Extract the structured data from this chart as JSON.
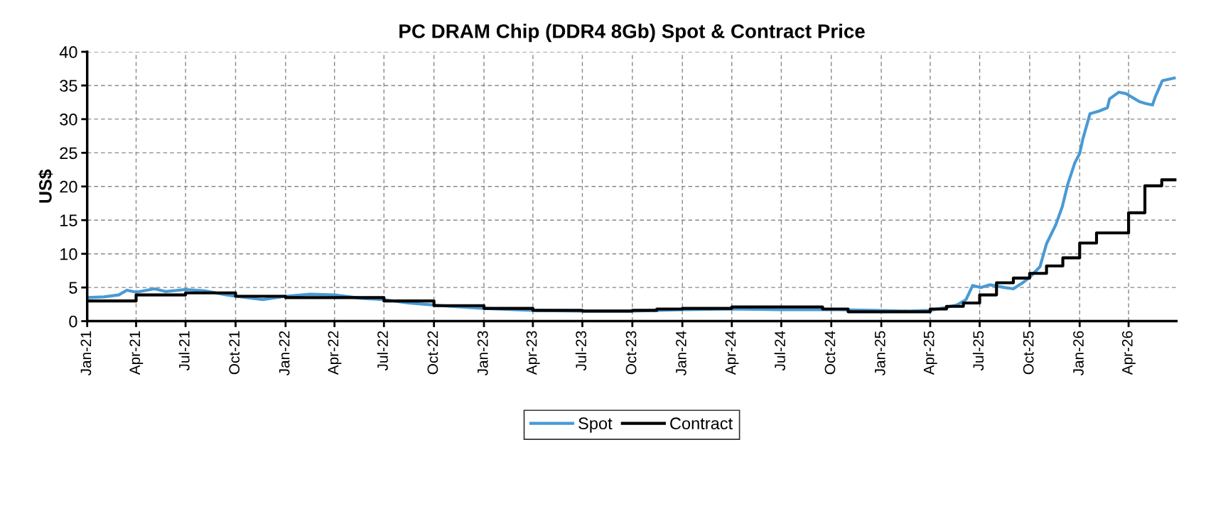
{
  "chart_data": {
    "type": "line",
    "title": "PC DRAM Chip (DDR4 8Gb) Spot & Contract Price",
    "ylabel": "US$",
    "xlim": [
      "2021-01-01",
      "2026-06-28"
    ],
    "xticks": [
      {
        "value": "2021-01-01",
        "label": "Jan-21"
      },
      {
        "value": "2021-04-01",
        "label": "Apr-21"
      },
      {
        "value": "2021-07-01",
        "label": "Jul-21"
      },
      {
        "value": "2021-10-01",
        "label": "Oct-21"
      },
      {
        "value": "2022-01-01",
        "label": "Jan-22"
      },
      {
        "value": "2022-04-01",
        "label": "Apr-22"
      },
      {
        "value": "2022-07-01",
        "label": "Jul-22"
      },
      {
        "value": "2022-10-01",
        "label": "Oct-22"
      },
      {
        "value": "2023-01-01",
        "label": "Jan-23"
      },
      {
        "value": "2023-04-01",
        "label": "Apr-23"
      },
      {
        "value": "2023-07-01",
        "label": "Jul-23"
      },
      {
        "value": "2023-10-01",
        "label": "Oct-23"
      },
      {
        "value": "2024-01-01",
        "label": "Jan-24"
      },
      {
        "value": "2024-04-01",
        "label": "Apr-24"
      },
      {
        "value": "2024-07-01",
        "label": "Jul-24"
      },
      {
        "value": "2024-10-01",
        "label": "Oct-24"
      },
      {
        "value": "2025-01-01",
        "label": "Jan-25"
      },
      {
        "value": "2025-04-01",
        "label": "Apr-25"
      },
      {
        "value": "2025-07-01",
        "label": "Jul-25"
      },
      {
        "value": "2025-10-01",
        "label": "Oct-25"
      },
      {
        "value": "2026-01-01",
        "label": "Jan-26"
      },
      {
        "value": "2026-04-01",
        "label": "Apr-26"
      }
    ],
    "ylim": [
      0,
      40
    ],
    "yticks": [
      0,
      5,
      10,
      15,
      20,
      25,
      30,
      35,
      40
    ],
    "grid": true,
    "legend": "bottom",
    "line_style": "solid",
    "marker": "none",
    "series": [
      {
        "name": "Spot",
        "type": "line",
        "color": "#4a9ad4",
        "x": [
          "2021-01-01",
          "2021-02-01",
          "2021-02-28",
          "2021-03-15",
          "2021-04-01",
          "2021-05-05",
          "2021-05-25",
          "2021-07-01",
          "2021-08-05",
          "2021-09-15",
          "2021-10-01",
          "2021-11-20",
          "2022-01-01",
          "2022-02-15",
          "2022-04-01",
          "2022-05-20",
          "2022-07-01",
          "2022-08-15",
          "2022-09-15",
          "2022-11-01",
          "2023-01-01",
          "2023-04-01",
          "2023-07-01",
          "2023-10-01",
          "2024-01-01",
          "2024-04-01",
          "2024-07-01",
          "2024-10-15",
          "2024-12-16",
          "2025-02-22",
          "2025-04-01",
          "2025-04-28",
          "2025-05-20",
          "2025-06-06",
          "2025-06-18",
          "2025-07-03",
          "2025-07-20",
          "2025-08-15",
          "2025-09-01",
          "2025-09-18",
          "2025-10-01",
          "2025-10-20",
          "2025-11-01",
          "2025-11-18",
          "2025-11-30",
          "2025-12-10",
          "2025-12-23",
          "2026-01-01",
          "2026-01-07",
          "2026-01-20",
          "2026-02-06",
          "2026-02-21",
          "2026-02-25",
          "2026-03-14",
          "2026-03-27",
          "2026-04-21",
          "2026-05-03",
          "2026-05-15",
          "2026-05-20",
          "2026-06-02",
          "2026-06-24"
        ],
        "values": [
          3.5,
          3.6,
          3.9,
          4.6,
          4.3,
          4.8,
          4.4,
          4.7,
          4.5,
          3.9,
          3.7,
          3.2,
          3.7,
          4.0,
          3.9,
          3.4,
          3.2,
          2.7,
          2.5,
          2.2,
          1.9,
          1.6,
          1.5,
          1.5,
          1.7,
          1.8,
          1.7,
          1.7,
          1.6,
          1.5,
          1.6,
          2.0,
          2.4,
          3.2,
          5.3,
          5.0,
          5.4,
          5.0,
          4.8,
          5.7,
          6.5,
          8.1,
          11.5,
          14.3,
          17.0,
          20.3,
          23.5,
          24.9,
          27.1,
          30.8,
          31.2,
          31.7,
          33.0,
          34.0,
          33.8,
          32.6,
          32.3,
          32.1,
          33.3,
          35.7,
          36.1
        ]
      },
      {
        "name": "Contract",
        "type": "step",
        "color": "#000000",
        "x": [
          "2021-01-01",
          "2021-04-01",
          "2021-07-01",
          "2021-10-01",
          "2022-01-01",
          "2022-07-01",
          "2022-10-01",
          "2023-01-01",
          "2023-04-01",
          "2023-07-01",
          "2023-10-01",
          "2023-11-15",
          "2024-01-01",
          "2024-04-01",
          "2024-09-15",
          "2024-11-01",
          "2025-04-01",
          "2025-05-01",
          "2025-06-01",
          "2025-07-01",
          "2025-08-01",
          "2025-09-01",
          "2025-10-01",
          "2025-11-01",
          "2025-12-01",
          "2026-01-01",
          "2026-02-01",
          "2026-04-01",
          "2026-05-01",
          "2026-06-01",
          "2026-06-28"
        ],
        "values": [
          3.0,
          3.9,
          4.2,
          3.7,
          3.5,
          3.0,
          2.3,
          1.9,
          1.6,
          1.5,
          1.6,
          1.8,
          1.9,
          2.1,
          1.8,
          1.4,
          1.8,
          2.2,
          2.7,
          3.9,
          5.7,
          6.4,
          7.1,
          8.2,
          9.4,
          11.6,
          13.1,
          16.1,
          20.1,
          21.0,
          21.0
        ]
      }
    ]
  }
}
